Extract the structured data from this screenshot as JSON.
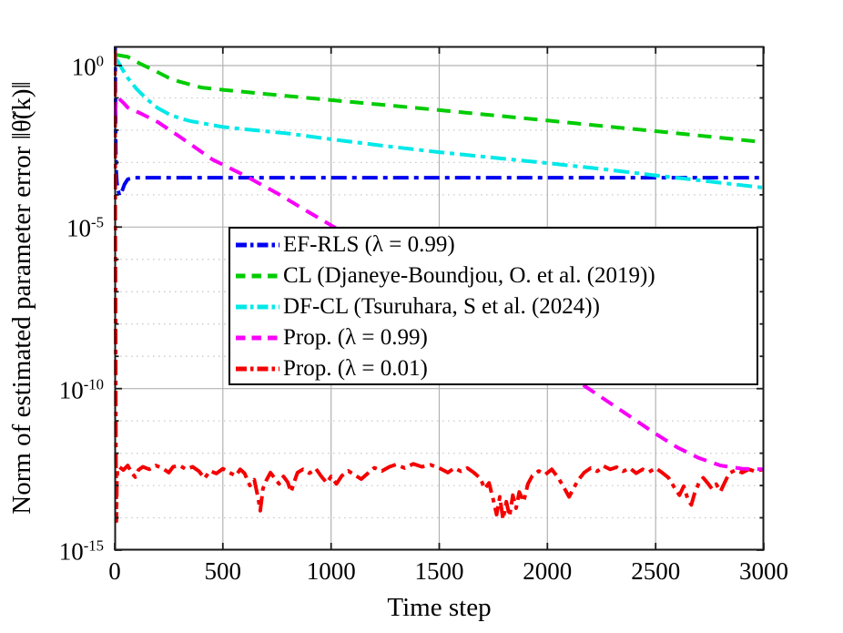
{
  "chart_data": {
    "type": "line",
    "title": "",
    "xlabel": "Time step",
    "ylabel": "Norm of estimated parameter error ‖θ̃(k)‖",
    "xlim": [
      0,
      3000
    ],
    "yscale": "log",
    "ylim": [
      1e-15,
      4
    ],
    "grid": {
      "major": true,
      "minor_horizontal_dotted": true
    },
    "legend_position": "center-right-inside",
    "x_ticks": [
      {
        "v": 0,
        "label": "0"
      },
      {
        "v": 500,
        "label": "500"
      },
      {
        "v": 1000,
        "label": "1000"
      },
      {
        "v": 1500,
        "label": "1500"
      },
      {
        "v": 2000,
        "label": "2000"
      },
      {
        "v": 2500,
        "label": "2500"
      },
      {
        "v": 3000,
        "label": "3000"
      }
    ],
    "y_ticks": [
      {
        "log10": 0,
        "exp_label": "0"
      },
      {
        "log10": -5,
        "exp_label": "-5"
      },
      {
        "log10": -10,
        "exp_label": "-10"
      },
      {
        "log10": -15,
        "exp_label": "-15"
      }
    ],
    "minor_y_decades": [
      -1,
      -2,
      -3,
      -4,
      -6,
      -7,
      -8,
      -9,
      -11,
      -12,
      -13,
      -14
    ],
    "series": [
      {
        "name": "EF-RLS (λ = 0.99)",
        "color": "#0000f0",
        "style": "dashdot",
        "points_x_log10y": [
          [
            2,
            0.6
          ],
          [
            3,
            -0.6
          ],
          [
            4,
            -1.7
          ],
          [
            5,
            -2.6
          ],
          [
            7,
            -3.3
          ],
          [
            10,
            -3.62
          ],
          [
            15,
            -3.85
          ],
          [
            22,
            -4.02
          ],
          [
            32,
            -3.92
          ],
          [
            45,
            -3.68
          ],
          [
            60,
            -3.52
          ],
          [
            90,
            -3.47
          ],
          [
            3000,
            -3.47
          ]
        ]
      },
      {
        "name": "CL (Djaneye-Boundjou, O. et al. (2019))",
        "color": "#00cc00",
        "style": "dashed",
        "points_x_log10y": [
          [
            10,
            0.33
          ],
          [
            60,
            0.27
          ],
          [
            120,
            0.05
          ],
          [
            180,
            -0.14
          ],
          [
            250,
            -0.38
          ],
          [
            300,
            -0.5
          ],
          [
            400,
            -0.68
          ],
          [
            500,
            -0.75
          ],
          [
            700,
            -0.88
          ],
          [
            1000,
            -1.07
          ],
          [
            1250,
            -1.22
          ],
          [
            1500,
            -1.38
          ],
          [
            1750,
            -1.54
          ],
          [
            2000,
            -1.7
          ],
          [
            2250,
            -1.87
          ],
          [
            2500,
            -2.03
          ],
          [
            2750,
            -2.2
          ],
          [
            3000,
            -2.37
          ]
        ]
      },
      {
        "name": "DF-CL (Tsuruhara, S et al. (2024))",
        "color": "#00e8e8",
        "style": "dashdot",
        "points_x_log10y": [
          [
            8,
            0.2
          ],
          [
            25,
            0.0
          ],
          [
            60,
            -0.38
          ],
          [
            100,
            -0.72
          ],
          [
            150,
            -1.05
          ],
          [
            200,
            -1.32
          ],
          [
            250,
            -1.5
          ],
          [
            300,
            -1.63
          ],
          [
            350,
            -1.72
          ],
          [
            400,
            -1.78
          ],
          [
            500,
            -1.9
          ],
          [
            600,
            -1.97
          ],
          [
            800,
            -2.1
          ],
          [
            1000,
            -2.28
          ],
          [
            1250,
            -2.49
          ],
          [
            1500,
            -2.68
          ],
          [
            1750,
            -2.85
          ],
          [
            2000,
            -3.02
          ],
          [
            2250,
            -3.2
          ],
          [
            2500,
            -3.4
          ],
          [
            2750,
            -3.59
          ],
          [
            3000,
            -3.78
          ]
        ]
      },
      {
        "name": "Prop. (λ = 0.01)",
        "color": "#f40000",
        "style": "dashdot",
        "points_x_log10y": [
          [
            1,
            0.48
          ],
          [
            2,
            -3.0
          ],
          [
            3,
            -5.5
          ],
          [
            4,
            -7.5
          ],
          [
            5,
            -10.0
          ],
          [
            6,
            -12.2
          ],
          [
            7,
            -13.3
          ],
          [
            8,
            -14.1
          ],
          [
            10,
            -12.9
          ],
          [
            13,
            -12.5
          ],
          [
            20,
            -12.42
          ],
          [
            40,
            -12.52
          ],
          [
            60,
            -12.38
          ],
          [
            80,
            -12.62
          ],
          [
            95,
            -12.74
          ],
          [
            110,
            -12.52
          ],
          [
            130,
            -12.42
          ],
          [
            160,
            -12.5
          ],
          [
            190,
            -12.38
          ],
          [
            220,
            -12.46
          ],
          [
            250,
            -12.6
          ],
          [
            270,
            -12.42
          ],
          [
            300,
            -12.38
          ],
          [
            330,
            -12.5
          ],
          [
            360,
            -12.42
          ],
          [
            390,
            -12.56
          ],
          [
            415,
            -12.78
          ],
          [
            440,
            -12.55
          ],
          [
            470,
            -12.63
          ],
          [
            500,
            -12.48
          ],
          [
            530,
            -12.6
          ],
          [
            560,
            -12.7
          ],
          [
            580,
            -12.5
          ],
          [
            600,
            -12.62
          ],
          [
            625,
            -13.0
          ],
          [
            645,
            -12.82
          ],
          [
            662,
            -13.35
          ],
          [
            673,
            -13.78
          ],
          [
            685,
            -13.1
          ],
          [
            700,
            -12.85
          ],
          [
            720,
            -12.6
          ],
          [
            740,
            -12.78
          ],
          [
            760,
            -12.95
          ],
          [
            780,
            -12.72
          ],
          [
            800,
            -12.9
          ],
          [
            815,
            -13.2
          ],
          [
            830,
            -12.88
          ],
          [
            845,
            -12.6
          ],
          [
            870,
            -12.5
          ],
          [
            900,
            -12.62
          ],
          [
            930,
            -12.48
          ],
          [
            955,
            -12.72
          ],
          [
            980,
            -12.92
          ],
          [
            1000,
            -12.72
          ],
          [
            1025,
            -12.95
          ],
          [
            1050,
            -12.7
          ],
          [
            1080,
            -12.55
          ],
          [
            1110,
            -12.68
          ],
          [
            1140,
            -12.8
          ],
          [
            1170,
            -12.62
          ],
          [
            1200,
            -12.45
          ],
          [
            1235,
            -12.55
          ],
          [
            1270,
            -12.42
          ],
          [
            1300,
            -12.35
          ],
          [
            1340,
            -12.46
          ],
          [
            1380,
            -12.33
          ],
          [
            1420,
            -12.42
          ],
          [
            1460,
            -12.36
          ],
          [
            1500,
            -12.46
          ],
          [
            1540,
            -12.6
          ],
          [
            1570,
            -12.46
          ],
          [
            1600,
            -12.56
          ],
          [
            1630,
            -12.46
          ],
          [
            1660,
            -12.6
          ],
          [
            1690,
            -12.78
          ],
          [
            1710,
            -13.1
          ],
          [
            1730,
            -12.92
          ],
          [
            1750,
            -13.45
          ],
          [
            1765,
            -13.9
          ],
          [
            1780,
            -13.35
          ],
          [
            1795,
            -14.05
          ],
          [
            1810,
            -13.5
          ],
          [
            1825,
            -13.95
          ],
          [
            1840,
            -13.3
          ],
          [
            1855,
            -13.7
          ],
          [
            1870,
            -13.2
          ],
          [
            1890,
            -13.5
          ],
          [
            1910,
            -12.95
          ],
          [
            1930,
            -12.7
          ],
          [
            1960,
            -12.55
          ],
          [
            1990,
            -12.66
          ],
          [
            2020,
            -12.5
          ],
          [
            2050,
            -12.76
          ],
          [
            2075,
            -13.05
          ],
          [
            2100,
            -13.35
          ],
          [
            2120,
            -13.1
          ],
          [
            2140,
            -12.85
          ],
          [
            2170,
            -12.6
          ],
          [
            2200,
            -12.46
          ],
          [
            2230,
            -12.56
          ],
          [
            2260,
            -12.4
          ],
          [
            2290,
            -12.5
          ],
          [
            2320,
            -12.43
          ],
          [
            2350,
            -12.56
          ],
          [
            2380,
            -12.46
          ],
          [
            2410,
            -12.62
          ],
          [
            2440,
            -12.5
          ],
          [
            2470,
            -12.58
          ],
          [
            2500,
            -12.46
          ],
          [
            2530,
            -12.6
          ],
          [
            2560,
            -12.76
          ],
          [
            2590,
            -13.1
          ],
          [
            2610,
            -13.3
          ],
          [
            2630,
            -13.02
          ],
          [
            2650,
            -13.45
          ],
          [
            2665,
            -13.6
          ],
          [
            2680,
            -13.25
          ],
          [
            2700,
            -12.92
          ],
          [
            2720,
            -12.76
          ],
          [
            2740,
            -12.92
          ],
          [
            2760,
            -13.1
          ],
          [
            2780,
            -12.96
          ],
          [
            2800,
            -13.18
          ],
          [
            2820,
            -12.9
          ],
          [
            2840,
            -12.62
          ],
          [
            2870,
            -12.52
          ],
          [
            2900,
            -12.6
          ],
          [
            2930,
            -12.5
          ],
          [
            2960,
            -12.56
          ],
          [
            3000,
            -12.5
          ]
        ]
      },
      {
        "name": "Prop. (λ = 0.99)",
        "color": "#f800f8",
        "style": "dashed",
        "points_x_log10y": [
          [
            2,
            -1.55
          ],
          [
            5,
            -1.18
          ],
          [
            10,
            -0.97
          ],
          [
            20,
            -1.03
          ],
          [
            40,
            -1.15
          ],
          [
            60,
            -1.3
          ],
          [
            120,
            -1.48
          ],
          [
            200,
            -1.75
          ],
          [
            300,
            -2.2
          ],
          [
            450,
            -2.9
          ],
          [
            600,
            -3.4
          ],
          [
            750,
            -3.95
          ],
          [
            900,
            -4.55
          ],
          [
            1027,
            -5.05
          ],
          [
            1200,
            -5.76
          ],
          [
            1400,
            -6.6
          ],
          [
            1600,
            -7.45
          ],
          [
            1800,
            -8.3
          ],
          [
            2000,
            -9.16
          ],
          [
            2190,
            -10.0
          ],
          [
            2350,
            -10.72
          ],
          [
            2500,
            -11.4
          ],
          [
            2600,
            -11.82
          ],
          [
            2700,
            -12.15
          ],
          [
            2800,
            -12.38
          ],
          [
            2900,
            -12.48
          ],
          [
            3000,
            -12.5
          ]
        ]
      }
    ],
    "legend_order": [
      "EF-RLS (λ = 0.99)",
      "CL (Djaneye-Boundjou, O. et al. (2019))",
      "DF-CL (Tsuruhara, S et al. (2024))",
      "Prop. (λ = 0.99)",
      "Prop. (λ = 0.01)"
    ],
    "colors": {
      "major_grid": "#b2b2b2",
      "minor_grid": "#cccccc",
      "axis_box": "#1a1a1a"
    }
  }
}
